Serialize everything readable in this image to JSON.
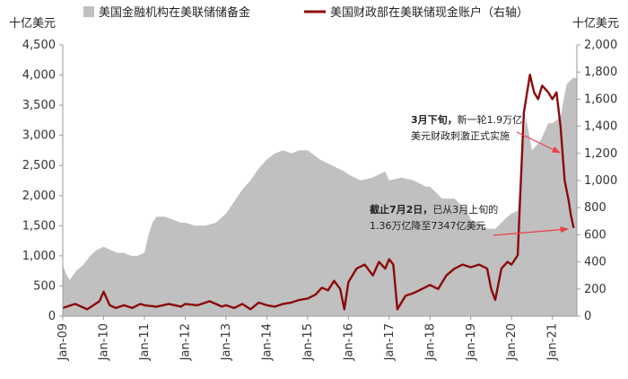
{
  "chart_data": {
    "type": "area+line",
    "legend": [
      {
        "label": "美国金融机构在美联储储备金",
        "color": "#c0c0c0",
        "kind": "area"
      },
      {
        "label": "美国财政部在美联储现金账户（右轴）",
        "color": "#8b0a0a",
        "kind": "line"
      }
    ],
    "left_axis": {
      "unit": "十亿美元",
      "ylim": [
        0,
        4500
      ],
      "ticks": [
        "0",
        "500",
        "1,000",
        "1,500",
        "2,000",
        "2,500",
        "3,000",
        "3,500",
        "4,000",
        "4,500"
      ]
    },
    "right_axis": {
      "unit": "十亿美元",
      "ylim": [
        0,
        2000
      ],
      "ticks": [
        "0",
        "200",
        "400",
        "600",
        "800",
        "1,000",
        "1,200",
        "1,400",
        "1,600",
        "1,800",
        "2,000"
      ]
    },
    "x_ticks": [
      "Jan-09",
      "Jan-10",
      "Jan-11",
      "Jan-12",
      "Jan-13",
      "Jan-14",
      "Jan-15",
      "Jan-16",
      "Jan-17",
      "Jan-18",
      "Jan-19",
      "Jan-20",
      "Jan-21"
    ],
    "x_range": [
      2009.0,
      2021.6
    ],
    "series": [
      {
        "name": "美国金融机构在美联储储备金",
        "axis": "left",
        "x": [
          2009.0,
          2009.08,
          2009.17,
          2009.33,
          2009.5,
          2009.67,
          2009.83,
          2010.0,
          2010.17,
          2010.33,
          2010.5,
          2010.67,
          2010.83,
          2011.0,
          2011.1,
          2011.2,
          2011.3,
          2011.5,
          2011.7,
          2011.9,
          2012.0,
          2012.25,
          2012.5,
          2012.75,
          2013.0,
          2013.2,
          2013.4,
          2013.6,
          2013.8,
          2014.0,
          2014.2,
          2014.4,
          2014.6,
          2014.8,
          2015.0,
          2015.3,
          2015.6,
          2015.9,
          2016.0,
          2016.3,
          2016.6,
          2016.9,
          2017.0,
          2017.3,
          2017.6,
          2017.9,
          2018.0,
          2018.3,
          2018.6,
          2018.9,
          2019.0,
          2019.2,
          2019.4,
          2019.6,
          2019.75,
          2019.9,
          2020.0,
          2020.15,
          2020.25,
          2020.35,
          2020.5,
          2020.7,
          2020.9,
          2021.0,
          2021.2,
          2021.35,
          2021.5,
          2021.6
        ],
        "y": [
          850,
          700,
          600,
          750,
          850,
          1000,
          1100,
          1150,
          1100,
          1050,
          1050,
          1000,
          1000,
          1050,
          1350,
          1550,
          1650,
          1650,
          1600,
          1550,
          1550,
          1500,
          1500,
          1550,
          1700,
          1900,
          2100,
          2250,
          2450,
          2600,
          2700,
          2750,
          2700,
          2750,
          2750,
          2600,
          2500,
          2400,
          2350,
          2250,
          2300,
          2400,
          2250,
          2300,
          2250,
          2150,
          2150,
          1950,
          1950,
          1750,
          1600,
          1550,
          1450,
          1450,
          1550,
          1650,
          1700,
          1750,
          2600,
          3300,
          2750,
          2900,
          3200,
          3200,
          3300,
          3850,
          3950,
          3950
        ]
      },
      {
        "name": "美国财政部在美联储现金账户（右轴）",
        "axis": "right",
        "x": [
          2009.0,
          2009.3,
          2009.6,
          2009.9,
          2010.0,
          2010.15,
          2010.3,
          2010.5,
          2010.7,
          2010.9,
          2011.0,
          2011.3,
          2011.6,
          2011.9,
          2012.0,
          2012.3,
          2012.6,
          2012.9,
          2013.0,
          2013.2,
          2013.4,
          2013.6,
          2013.8,
          2014.0,
          2014.2,
          2014.4,
          2014.6,
          2014.8,
          2015.0,
          2015.2,
          2015.35,
          2015.5,
          2015.65,
          2015.8,
          2015.9,
          2016.0,
          2016.2,
          2016.4,
          2016.6,
          2016.75,
          2016.9,
          2017.0,
          2017.1,
          2017.2,
          2017.4,
          2017.6,
          2017.8,
          2018.0,
          2018.2,
          2018.4,
          2018.6,
          2018.8,
          2019.0,
          2019.2,
          2019.4,
          2019.5,
          2019.6,
          2019.75,
          2019.9,
          2020.0,
          2020.15,
          2020.2,
          2020.3,
          2020.45,
          2020.55,
          2020.65,
          2020.75,
          2020.9,
          2021.0,
          2021.1,
          2021.2,
          2021.3,
          2021.4,
          2021.45,
          2021.52
        ],
        "y": [
          60,
          90,
          50,
          110,
          180,
          80,
          60,
          80,
          60,
          90,
          80,
          70,
          90,
          70,
          90,
          80,
          110,
          70,
          80,
          60,
          90,
          50,
          100,
          80,
          70,
          90,
          100,
          120,
          130,
          160,
          210,
          190,
          260,
          200,
          50,
          250,
          350,
          380,
          300,
          400,
          350,
          420,
          380,
          50,
          150,
          170,
          200,
          230,
          200,
          300,
          350,
          380,
          360,
          380,
          350,
          200,
          120,
          350,
          400,
          380,
          450,
          800,
          1500,
          1780,
          1650,
          1600,
          1700,
          1650,
          1600,
          1650,
          1400,
          1000,
          850,
          750,
          650
        ]
      }
    ],
    "annotations": [
      {
        "bold": "3月下旬，",
        "rest": "新一轮1.9万亿",
        "line2": "美元财政刺激正式实施"
      },
      {
        "bold": "截止7月2日，",
        "rest": "已从3月上旬的",
        "line2": "1.36万亿降至7347亿美元"
      }
    ],
    "colors": {
      "area": "#c0c0c0",
      "line": "#8b0a0a",
      "arrow": "#e8404a",
      "axis": "#999999"
    }
  }
}
